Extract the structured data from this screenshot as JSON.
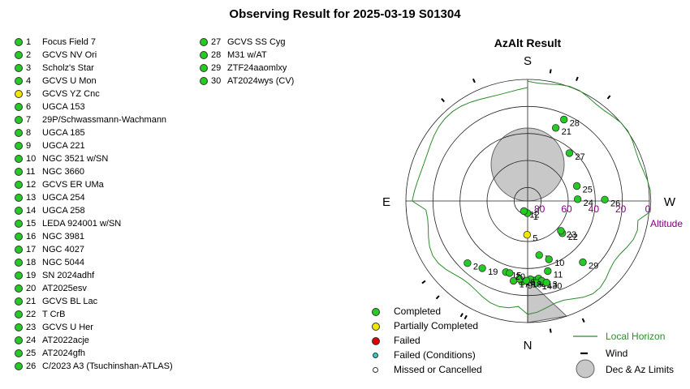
{
  "title": "Observing Result for 2025-03-19 S01304",
  "colors": {
    "completed": "#22cc22",
    "partial": "#f2e600",
    "failed": "#dd0000",
    "failed_conditions": "#33cccc",
    "missed": "#ffffff",
    "horizon": "#2e8b2e",
    "limit_fill": "#c8c8c8",
    "altitude_label": "#800080"
  },
  "targets": [
    {
      "num": "1",
      "name": "Focus Field 7",
      "status": "completed"
    },
    {
      "num": "2",
      "name": "GCVS NV Ori",
      "status": "completed"
    },
    {
      "num": "3",
      "name": "Scholz's Star",
      "status": "completed"
    },
    {
      "num": "4",
      "name": "GCVS U Mon",
      "status": "completed"
    },
    {
      "num": "5",
      "name": "GCVS YZ Cnc",
      "status": "partial"
    },
    {
      "num": "6",
      "name": "UGCA 153",
      "status": "completed"
    },
    {
      "num": "7",
      "name": "29P/Schwassmann-Wachmann",
      "status": "completed"
    },
    {
      "num": "8",
      "name": "UGCA 185",
      "status": "completed"
    },
    {
      "num": "9",
      "name": "UGCA 221",
      "status": "completed"
    },
    {
      "num": "10",
      "name": "NGC 3521 w/SN",
      "status": "completed"
    },
    {
      "num": "11",
      "name": "NGC 3660",
      "status": "completed"
    },
    {
      "num": "12",
      "name": "GCVS ER UMa",
      "status": "completed"
    },
    {
      "num": "13",
      "name": "UGCA 254",
      "status": "completed"
    },
    {
      "num": "14",
      "name": "UGCA 258",
      "status": "completed"
    },
    {
      "num": "15",
      "name": "LEDA 924001 w/SN",
      "status": "completed"
    },
    {
      "num": "16",
      "name": "NGC 3981",
      "status": "completed"
    },
    {
      "num": "17",
      "name": "NGC 4027",
      "status": "completed"
    },
    {
      "num": "18",
      "name": "NGC 5044",
      "status": "completed"
    },
    {
      "num": "19",
      "name": "SN 2024adhf",
      "status": "completed"
    },
    {
      "num": "20",
      "name": "AT2025esv",
      "status": "completed"
    },
    {
      "num": "21",
      "name": "GCVS BL Lac",
      "status": "completed"
    },
    {
      "num": "22",
      "name": "T CrB",
      "status": "completed"
    },
    {
      "num": "23",
      "name": "GCVS U Her",
      "status": "completed"
    },
    {
      "num": "24",
      "name": "AT2022acje",
      "status": "completed"
    },
    {
      "num": "25",
      "name": "AT2024gfh",
      "status": "completed"
    },
    {
      "num": "26",
      "name": "C/2023 A3 (Tsuchinshan-ATLAS)",
      "status": "completed"
    },
    {
      "num": "27",
      "name": "GCVS SS Cyg",
      "status": "completed"
    },
    {
      "num": "28",
      "name": "M31 w/AT",
      "status": "completed"
    },
    {
      "num": "29",
      "name": "ZTF24aaomlxy",
      "status": "completed"
    },
    {
      "num": "30",
      "name": "AT2024wys (CV)",
      "status": "completed"
    }
  ],
  "azalt": {
    "title": "AzAlt Result",
    "directions": {
      "north": "N",
      "south": "S",
      "east": "E",
      "west": "W"
    },
    "altitude_ticks": [
      "80",
      "60",
      "40",
      "20",
      "0"
    ],
    "altitude_label": "Altitude",
    "plotted": [
      {
        "num": "1",
        "az": 179,
        "alt": 81,
        "status": "completed"
      },
      {
        "num": "2",
        "az": 136,
        "alt": 26,
        "status": "completed"
      },
      {
        "num": "3",
        "az": 186,
        "alt": 31,
        "status": "completed"
      },
      {
        "num": "4",
        "az": 184,
        "alt": 31,
        "status": "completed"
      },
      {
        "num": "5",
        "az": 179,
        "alt": 65,
        "status": "partial"
      },
      {
        "num": "6",
        "az": 182,
        "alt": 32,
        "status": "completed"
      },
      {
        "num": "7",
        "az": 192,
        "alt": 49,
        "status": "completed"
      },
      {
        "num": "8",
        "az": 188,
        "alt": 32,
        "status": "completed"
      },
      {
        "num": "9",
        "az": 176,
        "alt": 30,
        "status": "completed"
      },
      {
        "num": "10",
        "az": 200,
        "alt": 44,
        "status": "completed"
      },
      {
        "num": "11",
        "az": 196,
        "alt": 36,
        "status": "completed"
      },
      {
        "num": "12",
        "az": 160,
        "alt": 82,
        "status": "completed"
      },
      {
        "num": "13",
        "az": 190,
        "alt": 30,
        "status": "completed"
      },
      {
        "num": "14",
        "az": 186,
        "alt": 29,
        "status": "completed"
      },
      {
        "num": "15",
        "az": 163,
        "alt": 35,
        "status": "completed"
      },
      {
        "num": "16",
        "az": 174,
        "alt": 32,
        "status": "completed"
      },
      {
        "num": "17",
        "az": 170,
        "alt": 30,
        "status": "completed"
      },
      {
        "num": "18",
        "az": 179,
        "alt": 31,
        "status": "completed"
      },
      {
        "num": "19",
        "az": 146,
        "alt": 30,
        "status": "completed"
      },
      {
        "num": "20",
        "az": 166,
        "alt": 35,
        "status": "completed"
      },
      {
        "num": "21",
        "az": 339,
        "alt": 32,
        "status": "completed"
      },
      {
        "num": "22",
        "az": 227,
        "alt": 55,
        "status": "completed"
      },
      {
        "num": "23",
        "az": 228,
        "alt": 57,
        "status": "completed"
      },
      {
        "num": "24",
        "az": 272,
        "alt": 53,
        "status": "completed"
      },
      {
        "num": "25",
        "az": 287,
        "alt": 52,
        "status": "completed"
      },
      {
        "num": "26",
        "az": 271,
        "alt": 33,
        "status": "completed"
      },
      {
        "num": "27",
        "az": 319,
        "alt": 43,
        "status": "completed"
      },
      {
        "num": "28",
        "az": 336,
        "alt": 24,
        "status": "completed"
      },
      {
        "num": "29",
        "az": 222,
        "alt": 29,
        "status": "completed"
      },
      {
        "num": "30",
        "az": 193,
        "alt": 28,
        "status": "completed"
      }
    ]
  },
  "legend": {
    "completed": "Completed",
    "partial": "Partially Completed",
    "failed": "Failed",
    "failed_conditions": "Failed (Conditions)",
    "missed": "Missed or Cancelled",
    "local_horizon": "Local Horizon",
    "wind": "Wind",
    "limits": "Dec & Az Limits"
  }
}
